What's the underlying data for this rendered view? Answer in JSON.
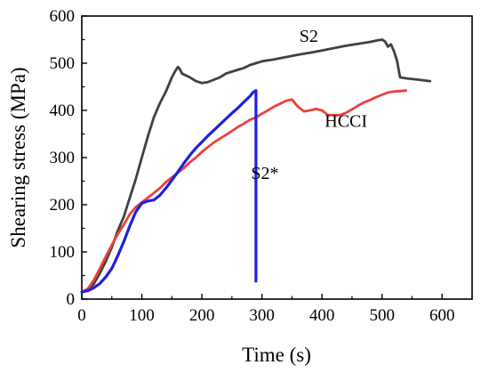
{
  "chart_data": {
    "type": "line",
    "xlabel": "Time (s)",
    "ylabel": "Shearing stress (MPa)",
    "xlim": [
      0,
      650
    ],
    "ylim": [
      0,
      600
    ],
    "xticks": [
      0,
      100,
      200,
      300,
      400,
      500,
      600
    ],
    "yticks": [
      0,
      100,
      200,
      300,
      400,
      500,
      600
    ],
    "x_tick_labels": [
      "0",
      "100",
      "200",
      "300",
      "400",
      "500",
      "600"
    ],
    "y_tick_labels": [
      "0",
      "100",
      "200",
      "300",
      "400",
      "500",
      "600"
    ],
    "grid": false,
    "legend": "none",
    "series": [
      {
        "name": "S2",
        "color": "#404040",
        "x": [
          0,
          10,
          20,
          30,
          40,
          50,
          60,
          70,
          80,
          90,
          100,
          110,
          120,
          130,
          140,
          150,
          155,
          160,
          163,
          167,
          172,
          180,
          190,
          200,
          210,
          220,
          230,
          240,
          250,
          260,
          270,
          280,
          290,
          300,
          320,
          340,
          360,
          380,
          400,
          420,
          440,
          460,
          480,
          490,
          500,
          505,
          510,
          515,
          520,
          525,
          530,
          540,
          560,
          580
        ],
        "y": [
          15,
          20,
          32,
          55,
          80,
          110,
          145,
          175,
          215,
          255,
          300,
          345,
          385,
          415,
          440,
          470,
          482,
          492,
          488,
          478,
          475,
          470,
          462,
          458,
          460,
          465,
          470,
          478,
          482,
          486,
          490,
          496,
          500,
          504,
          508,
          513,
          518,
          522,
          527,
          532,
          537,
          541,
          545,
          548,
          550,
          546,
          535,
          540,
          525,
          505,
          470,
          468,
          465,
          462
        ]
      },
      {
        "name": "HCCI",
        "color": "#e8413e",
        "x": [
          0,
          10,
          20,
          30,
          40,
          50,
          60,
          70,
          80,
          90,
          100,
          110,
          120,
          130,
          140,
          150,
          160,
          170,
          180,
          190,
          200,
          210,
          220,
          230,
          240,
          250,
          260,
          270,
          280,
          290,
          300,
          310,
          320,
          330,
          340,
          350,
          360,
          370,
          380,
          390,
          400,
          410,
          420,
          430,
          440,
          450,
          460,
          470,
          480,
          490,
          500,
          510,
          520,
          530,
          540
        ],
        "y": [
          15,
          22,
          40,
          65,
          90,
          115,
          138,
          158,
          180,
          195,
          205,
          215,
          225,
          235,
          248,
          258,
          268,
          278,
          290,
          300,
          312,
          322,
          332,
          340,
          348,
          356,
          365,
          372,
          380,
          385,
          393,
          400,
          408,
          414,
          420,
          423,
          408,
          398,
          400,
          403,
          400,
          390,
          390,
          390,
          395,
          402,
          410,
          417,
          422,
          428,
          433,
          438,
          440,
          441,
          442
        ]
      },
      {
        "name": "S2*",
        "color": "#1f1fe0",
        "x": [
          0,
          10,
          20,
          30,
          40,
          50,
          60,
          70,
          80,
          90,
          100,
          110,
          120,
          130,
          140,
          150,
          160,
          170,
          180,
          190,
          200,
          210,
          220,
          230,
          240,
          250,
          260,
          270,
          280,
          285,
          290,
          290,
          290
        ],
        "y": [
          15,
          18,
          24,
          33,
          47,
          65,
          92,
          122,
          155,
          185,
          203,
          208,
          210,
          220,
          235,
          252,
          270,
          288,
          305,
          320,
          333,
          346,
          358,
          370,
          382,
          394,
          405,
          418,
          430,
          438,
          442,
          230,
          38
        ]
      }
    ],
    "annotations": [
      {
        "text": "S2",
        "x": 378,
        "y": 545
      },
      {
        "text": "HCCI",
        "x": 440,
        "y": 365
      },
      {
        "text": "S2*",
        "x": 305,
        "y": 255
      }
    ]
  }
}
